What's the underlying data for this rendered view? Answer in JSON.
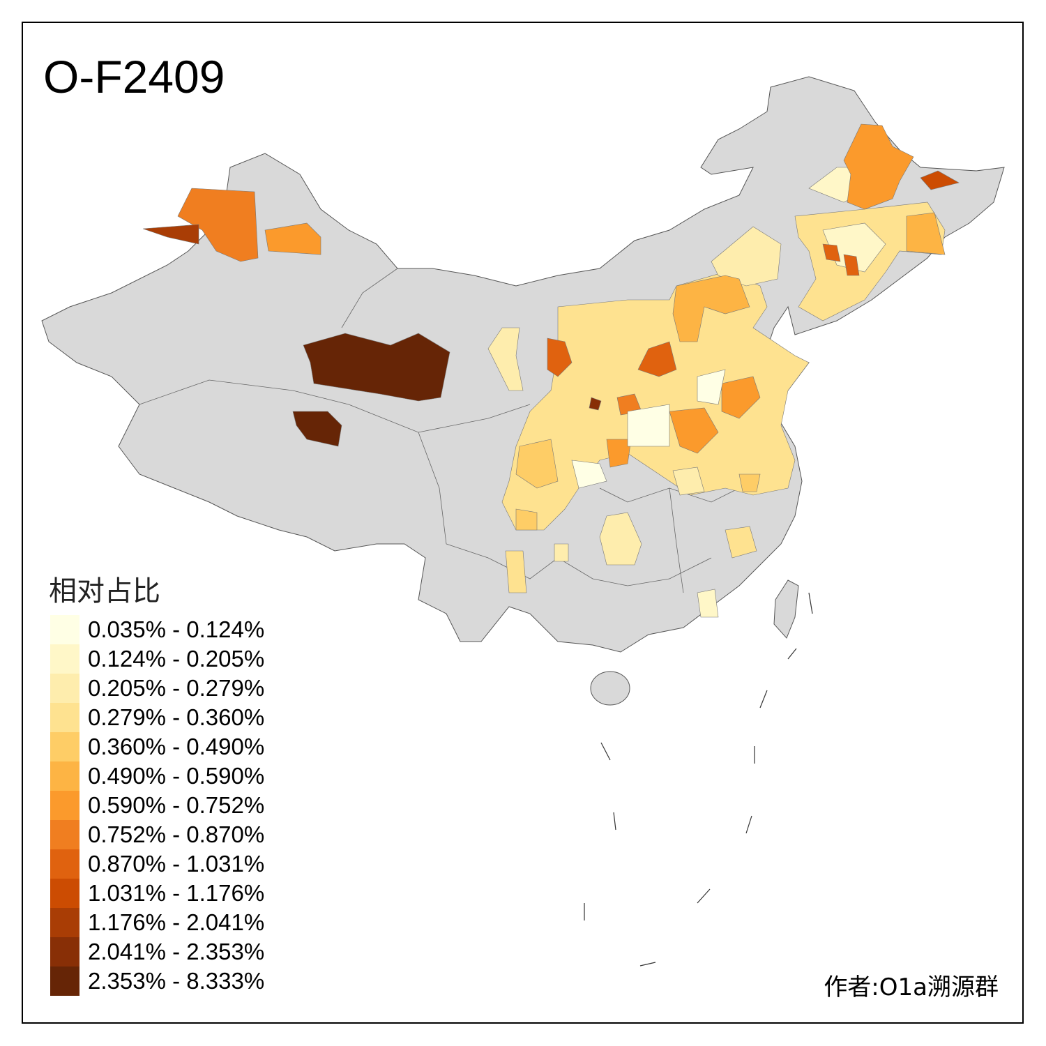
{
  "title": "O-F2409",
  "legend": {
    "title": "相对占比",
    "items": [
      {
        "label": "0.035% - 0.124%",
        "color": "#FFFFE5"
      },
      {
        "label": "0.124% - 0.205%",
        "color": "#FFF7C8"
      },
      {
        "label": "0.205% - 0.279%",
        "color": "#FEEDAD"
      },
      {
        "label": "0.279% - 0.360%",
        "color": "#FEE290"
      },
      {
        "label": "0.360% - 0.490%",
        "color": "#FECD66"
      },
      {
        "label": "0.490% - 0.590%",
        "color": "#FDB444"
      },
      {
        "label": "0.590% - 0.752%",
        "color": "#FB9A2C"
      },
      {
        "label": "0.752% - 0.870%",
        "color": "#F07E20"
      },
      {
        "label": "0.870% - 1.031%",
        "color": "#E0620F"
      },
      {
        "label": "1.031% - 1.176%",
        "color": "#CC4C02"
      },
      {
        "label": "1.176% - 2.041%",
        "color": "#A93D05"
      },
      {
        "label": "2.041% - 2.353%",
        "color": "#882F06"
      },
      {
        "label": "2.353% - 8.333%",
        "color": "#662506"
      }
    ]
  },
  "author": "作者:O1a溯源群",
  "colors": {
    "no_data": "#D9D9D9",
    "border": "#555555"
  }
}
